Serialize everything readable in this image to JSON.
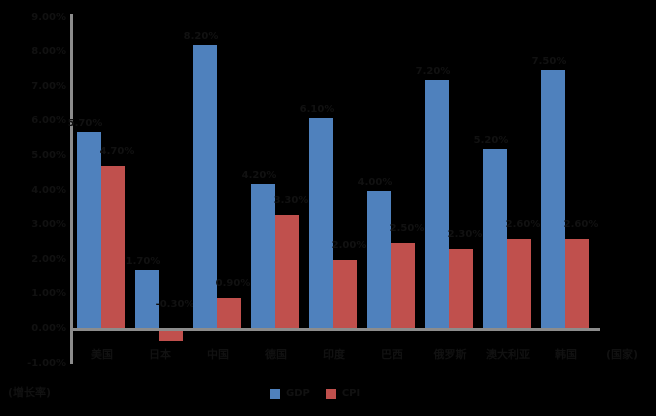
{
  "chart_data": {
    "type": "bar",
    "title": "",
    "xlabel": "(国家)",
    "ylabel": "(增长率)",
    "categories": [
      "美国",
      "日本",
      "中国",
      "德国",
      "印度",
      "巴西",
      "俄罗斯",
      "澳大利亚",
      "韩国"
    ],
    "series": [
      {
        "name": "GDP",
        "color": "#4f81bd",
        "values": [
          5.7,
          1.7,
          8.2,
          4.2,
          6.1,
          4.0,
          7.2,
          5.2,
          7.5
        ]
      },
      {
        "name": "CPI",
        "color": "#c0504d",
        "values": [
          4.7,
          -0.3,
          0.9,
          3.3,
          2.0,
          2.5,
          2.3,
          2.6,
          2.6
        ]
      }
    ],
    "value_labels": {
      "GDP": [
        "5.70%",
        "1.70%",
        "8.20%",
        "4.20%",
        "6.10%",
        "4.00%",
        "7.20%",
        "5.20%",
        "7.50%"
      ],
      "CPI": [
        "4.70%",
        "-0.30%",
        "0.90%",
        "3.30%",
        "2.00%",
        "2.50%",
        "2.30%",
        "2.60%",
        "2.60%"
      ]
    },
    "yticks": [
      "9.00%",
      "8.00%",
      "7.00%",
      "6.00%",
      "5.00%",
      "4.00%",
      "3.00%",
      "2.00%",
      "1.00%",
      "0.00%",
      "-1.00%"
    ],
    "ylim": [
      -1,
      9
    ],
    "grid": false,
    "legend_position": "bottom"
  },
  "axis": {
    "x_unit": "(国家)",
    "y_unit": "(增长率)"
  },
  "legend": {
    "items": [
      {
        "label": "GDP",
        "color": "#4f81bd"
      },
      {
        "label": "CPI",
        "color": "#c0504d"
      }
    ]
  }
}
